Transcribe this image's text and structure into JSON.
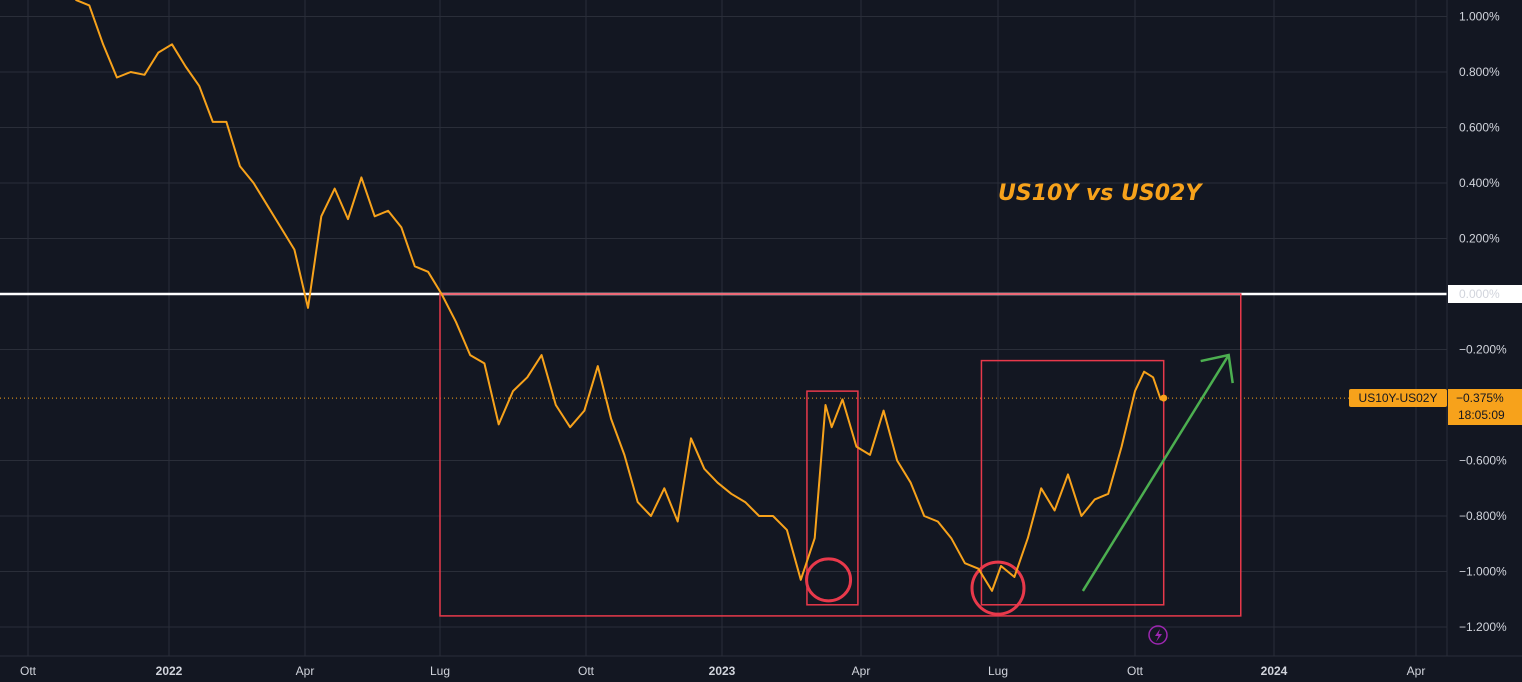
{
  "chart_data": {
    "type": "line",
    "title": "US10Y vs US02Y",
    "xlabel": "",
    "ylabel": "",
    "x_ticks": [
      "Ott",
      "2022",
      "Apr",
      "Lug",
      "Ott",
      "2023",
      "Apr",
      "Lug",
      "Ott",
      "2024",
      "Apr"
    ],
    "x_tick_dates": [
      "2021-10-01",
      "2022-01-01",
      "2022-04-01",
      "2022-07-01",
      "2022-10-01",
      "2023-01-01",
      "2023-04-01",
      "2023-07-01",
      "2023-10-01",
      "2024-01-01",
      "2024-04-01"
    ],
    "y_ticks": [
      "1.000%",
      "0.800%",
      "0.600%",
      "0.400%",
      "0.200%",
      "0.000%",
      "−0.200%",
      "−0.600%",
      "−0.800%",
      "−1.000%",
      "−1.200%"
    ],
    "ylim": [
      -1.25,
      1.05
    ],
    "grid": true,
    "series": [
      {
        "name": "US10Y-US02Y",
        "color": "#f7a21b",
        "x": [
          "2021-11-01",
          "2021-11-10",
          "2021-11-19",
          "2021-11-28",
          "2021-12-07",
          "2021-12-16",
          "2021-12-25",
          "2022-01-03",
          "2022-01-12",
          "2022-01-21",
          "2022-01-30",
          "2022-02-08",
          "2022-02-17",
          "2022-02-26",
          "2022-03-07",
          "2022-03-16",
          "2022-03-25",
          "2022-04-03",
          "2022-04-12",
          "2022-04-21",
          "2022-04-30",
          "2022-05-09",
          "2022-05-18",
          "2022-05-27",
          "2022-06-05",
          "2022-06-14",
          "2022-06-23",
          "2022-07-02",
          "2022-07-11",
          "2022-07-20",
          "2022-07-29",
          "2022-08-07",
          "2022-08-16",
          "2022-08-25",
          "2022-09-03",
          "2022-09-12",
          "2022-09-21",
          "2022-09-30",
          "2022-10-09",
          "2022-10-18",
          "2022-10-27",
          "2022-11-05",
          "2022-11-14",
          "2022-11-23",
          "2022-12-02",
          "2022-12-11",
          "2022-12-20",
          "2022-12-29",
          "2023-01-07",
          "2023-01-16",
          "2023-01-25",
          "2023-02-03",
          "2023-02-12",
          "2023-02-21",
          "2023-03-02",
          "2023-03-09",
          "2023-03-13",
          "2023-03-20",
          "2023-03-29",
          "2023-04-07",
          "2023-04-16",
          "2023-04-25",
          "2023-05-04",
          "2023-05-13",
          "2023-05-22",
          "2023-05-31",
          "2023-06-09",
          "2023-06-18",
          "2023-06-27",
          "2023-07-03",
          "2023-07-12",
          "2023-07-21",
          "2023-07-30",
          "2023-08-08",
          "2023-08-17",
          "2023-08-26",
          "2023-09-04",
          "2023-09-13",
          "2023-09-22",
          "2023-10-01",
          "2023-10-07",
          "2023-10-13",
          "2023-10-18",
          "2023-10-20"
        ],
        "y": [
          1.06,
          1.04,
          0.9,
          0.78,
          0.8,
          0.79,
          0.87,
          0.9,
          0.82,
          0.75,
          0.62,
          0.62,
          0.46,
          0.4,
          0.32,
          0.24,
          0.16,
          -0.05,
          0.28,
          0.38,
          0.27,
          0.42,
          0.28,
          0.3,
          0.24,
          0.1,
          0.08,
          0.0,
          -0.1,
          -0.22,
          -0.25,
          -0.47,
          -0.35,
          -0.3,
          -0.22,
          -0.4,
          -0.48,
          -0.42,
          -0.26,
          -0.45,
          -0.58,
          -0.75,
          -0.8,
          -0.7,
          -0.82,
          -0.52,
          -0.63,
          -0.68,
          -0.72,
          -0.75,
          -0.8,
          -0.8,
          -0.85,
          -1.03,
          -0.88,
          -0.4,
          -0.48,
          -0.38,
          -0.55,
          -0.58,
          -0.42,
          -0.6,
          -0.68,
          -0.8,
          -0.82,
          -0.88,
          -0.97,
          -0.99,
          -1.07,
          -0.98,
          -1.02,
          -0.88,
          -0.7,
          -0.78,
          -0.65,
          -0.8,
          -0.74,
          -0.72,
          -0.55,
          -0.35,
          -0.28,
          -0.3,
          -0.38,
          -0.375
        ]
      }
    ],
    "last_value_label": "US10Y-US02Y",
    "last_value": "−0.375%",
    "countdown": "18:05:09",
    "annotations": {
      "zero_line": "white horizontal line at 0.000%",
      "boxes": "red rectangles",
      "circles": "red circles at lows",
      "arrow": "green upward arrow"
    }
  },
  "colors": {
    "background": "#131722",
    "grid": "#2a2e39",
    "axis_text": "#d1d4dc",
    "series": "#f7a21b",
    "annotation_red": "#e8394b",
    "annotation_green": "#4caf50",
    "zero_line": "#ffffff",
    "flash_icon": "#9c27b0"
  },
  "icons": {
    "flash": "lightning-bolt-icon"
  }
}
